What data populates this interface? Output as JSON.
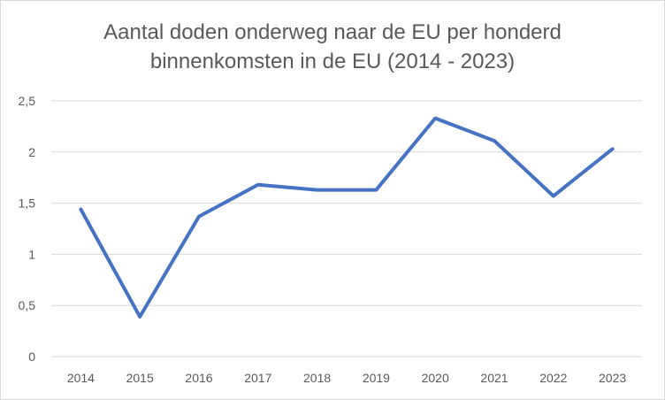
{
  "chart_data": {
    "type": "line",
    "title_lines": [
      "Aantal doden onderweg naar de EU per honderd",
      "binnenkomsten in de EU (2014 - 2023)"
    ],
    "categories": [
      "2014",
      "2015",
      "2016",
      "2017",
      "2018",
      "2019",
      "2020",
      "2021",
      "2022",
      "2023"
    ],
    "values": [
      1.44,
      0.39,
      1.37,
      1.68,
      1.63,
      1.63,
      2.33,
      2.11,
      1.57,
      2.03
    ],
    "ylim": [
      0,
      2.5
    ],
    "yticks": [
      0,
      0.5,
      1,
      1.5,
      2,
      2.5
    ],
    "ytick_labels": [
      "0",
      "0,5",
      "1",
      "1,5",
      "2",
      "2,5"
    ],
    "grid": true,
    "line_color": "#4472c4",
    "xlabel": "",
    "ylabel": ""
  }
}
